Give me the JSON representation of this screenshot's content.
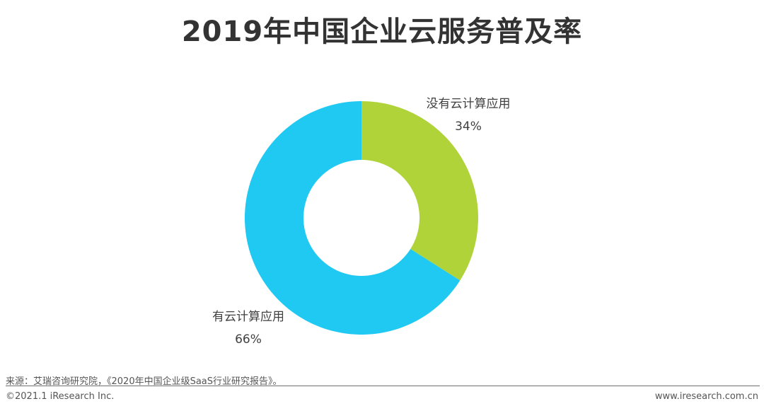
{
  "header": {
    "title": "2019年中国企业云服务普及率"
  },
  "chart_data": {
    "type": "pie",
    "donut": true,
    "title": "2019年中国企业云服务普及率",
    "slices": [
      {
        "label": "没有云计算应用",
        "value": 34,
        "display": "34%",
        "color": "#afd338"
      },
      {
        "label": "有云计算应用",
        "value": 66,
        "display": "66%",
        "color": "#1fc9f2"
      }
    ]
  },
  "footer": {
    "source": "来源：艾瑞咨询研究院，《2020年中国企业级SaaS行业研究报告》。",
    "copyright": "©2021.1 iResearch Inc.",
    "website": "www.iresearch.com.cn"
  }
}
